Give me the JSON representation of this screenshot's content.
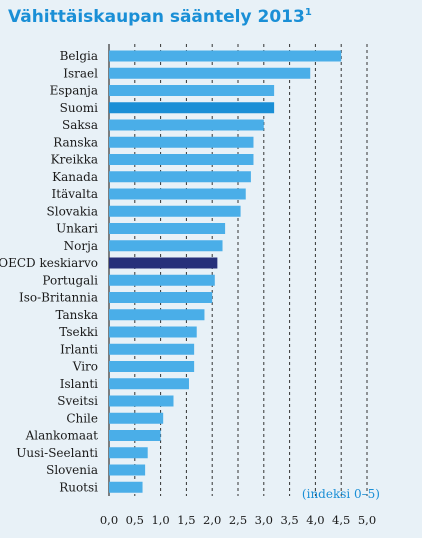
{
  "chart_data": {
    "type": "bar",
    "orientation": "horizontal",
    "title": "Vähittäiskaupan sääntely 2013",
    "title_superscript": "1",
    "note": "(indeksi 0–5)",
    "categories": [
      "Belgia",
      "Israel",
      "Espanja",
      "Suomi",
      "Saksa",
      "Ranska",
      "Kreikka",
      "Kanada",
      "Itävalta",
      "Slovakia",
      "Unkari",
      "Norja",
      "OECD keskiarvo",
      "Portugali",
      "Iso-Britannia",
      "Tanska",
      "Tsekki",
      "Irlanti",
      "Viro",
      "Islanti",
      "Sveitsi",
      "Chile",
      "Alankomaat",
      "Uusi-Seelanti",
      "Slovenia",
      "Ruotsi"
    ],
    "values": [
      4.5,
      3.9,
      3.2,
      3.2,
      3.0,
      2.8,
      2.8,
      2.75,
      2.65,
      2.55,
      2.25,
      2.2,
      2.1,
      2.05,
      2.0,
      1.85,
      1.7,
      1.65,
      1.65,
      1.55,
      1.25,
      1.05,
      1.0,
      0.75,
      0.7,
      0.65
    ],
    "highlight": {
      "Suomi": "#1a8fd6",
      "OECD keskiarvo": "#27307a"
    },
    "xlim": [
      0,
      5
    ],
    "xticks": [
      "0,0",
      "0,5",
      "1,0",
      "1,5",
      "2,0",
      "2,5",
      "3,0",
      "3,5",
      "4,0",
      "4,5",
      "5,0"
    ],
    "grid": "dashed vertical",
    "colors": {
      "bar": "#4aaee8",
      "title": "#1a8fd6",
      "note": "#1a8fd6",
      "background": "#e8f1f7"
    }
  }
}
